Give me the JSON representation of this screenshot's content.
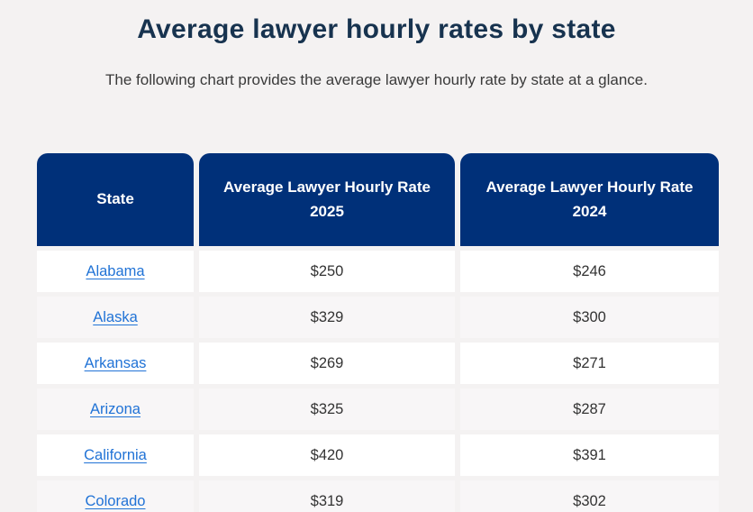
{
  "page": {
    "title": "Average lawyer hourly rates by state",
    "subtitle": "The following chart provides the average lawyer hourly rate by state at a glance."
  },
  "table": {
    "columns": [
      "State",
      "Average Lawyer Hourly Rate 2025",
      "Average Lawyer Hourly Rate 2024"
    ],
    "rows": [
      {
        "state": "Alabama",
        "rate_2025": "$250",
        "rate_2024": "$246"
      },
      {
        "state": "Alaska",
        "rate_2025": "$329",
        "rate_2024": "$300"
      },
      {
        "state": "Arkansas",
        "rate_2025": "$269",
        "rate_2024": "$271"
      },
      {
        "state": "Arizona",
        "rate_2025": "$325",
        "rate_2024": "$287"
      },
      {
        "state": "California",
        "rate_2025": "$420",
        "rate_2024": "$391"
      },
      {
        "state": "Colorado",
        "rate_2025": "$319",
        "rate_2024": "$302"
      }
    ]
  },
  "colors": {
    "page_bg": "#f4f2f2",
    "header_bg": "#003079",
    "title_color": "#17334f",
    "subtitle_color": "#3a3a3a",
    "cell_text": "#333333",
    "link_color": "#2173d6",
    "alt_row_bg": "#f8f6f7"
  },
  "chart_data": {
    "type": "table",
    "title": "Average lawyer hourly rates by state",
    "columns": [
      "State",
      "Average Lawyer Hourly Rate 2025",
      "Average Lawyer Hourly Rate 2024"
    ],
    "rows": [
      [
        "Alabama",
        250,
        246
      ],
      [
        "Alaska",
        329,
        300
      ],
      [
        "Arkansas",
        269,
        271
      ],
      [
        "Arizona",
        325,
        287
      ],
      [
        "California",
        420,
        391
      ],
      [
        "Colorado",
        319,
        302
      ]
    ],
    "units": "USD per hour",
    "notes": "Last visible row (Colorado) is partially cut off at the bottom edge of the screenshot."
  }
}
